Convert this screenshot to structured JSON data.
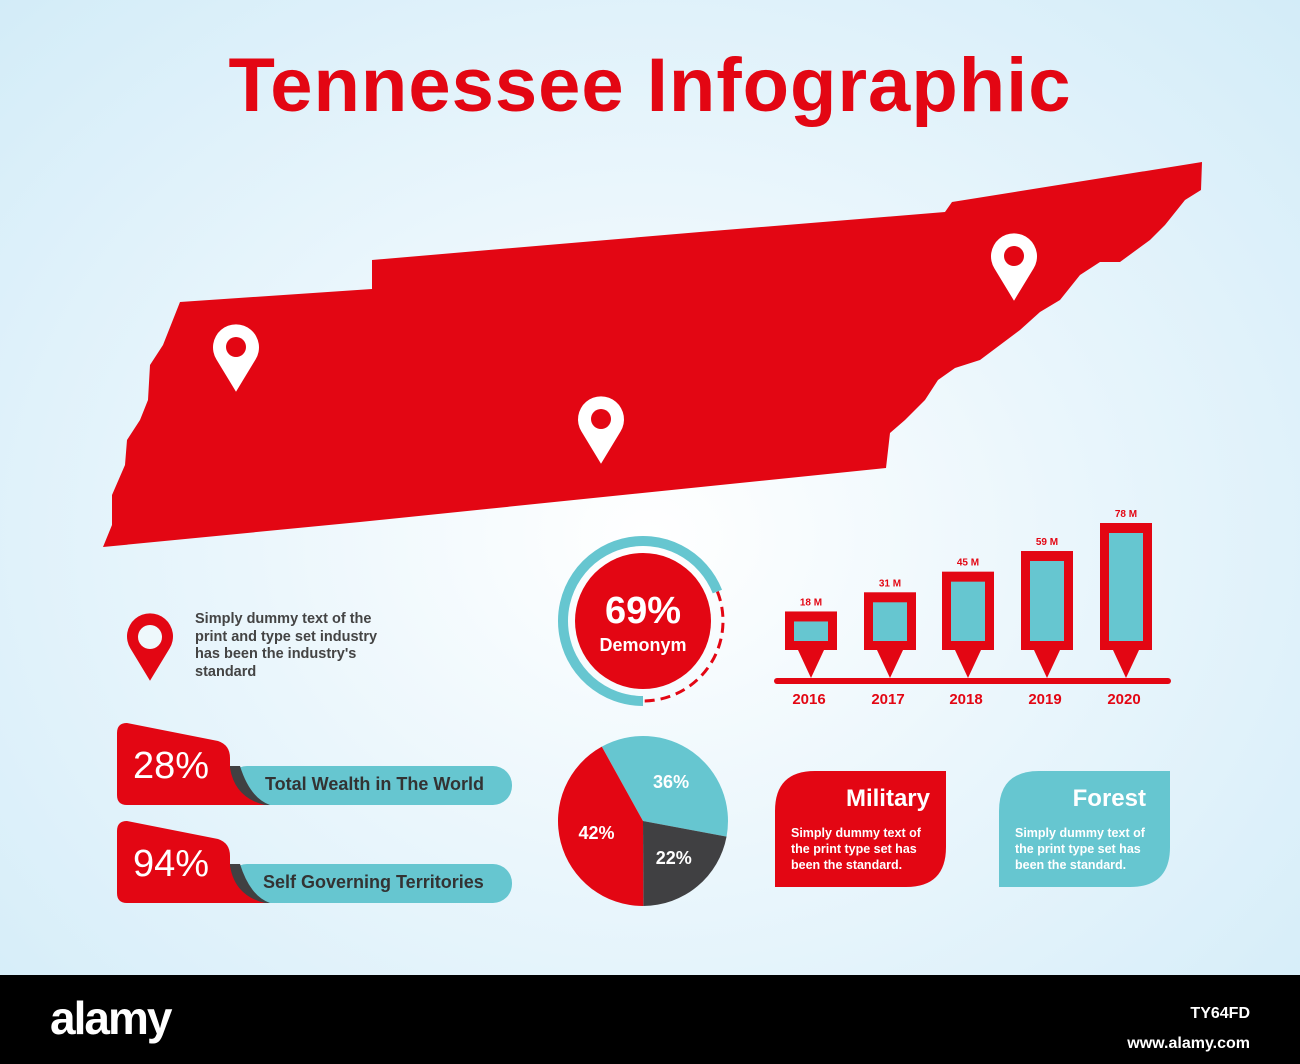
{
  "title": "Tennessee Infographic",
  "colors": {
    "red": "#e30613",
    "teal": "#66c6d0",
    "dark": "#404042",
    "bg": "#e6f4fb"
  },
  "map": {
    "name": "Tennessee",
    "pins": 3
  },
  "note": {
    "icon": "map-pin-icon",
    "text": "Simply dummy text of the print and type set industry has been the industry's standard"
  },
  "ring": {
    "value": 69,
    "percent_label": "69%",
    "label": "Demonym"
  },
  "stats": [
    {
      "percent": "28%",
      "label": "Total Wealth in The World"
    },
    {
      "percent": "94%",
      "label": "Self Governing Territories"
    }
  ],
  "cards": [
    {
      "title": "Military",
      "text": "Simply dummy text of the print type set has been the standard.",
      "color": "#e30613"
    },
    {
      "title": "Forest",
      "text": "Simply dummy text of the print type set has been the standard.",
      "color": "#66c6d0"
    }
  ],
  "chart_data": [
    {
      "type": "bar",
      "categories": [
        "2016",
        "2017",
        "2018",
        "2019",
        "2020"
      ],
      "values": [
        18,
        31,
        45,
        59,
        78
      ],
      "data_labels": [
        "18 M",
        "31 M",
        "45 M",
        "59 M",
        "78 M"
      ]
    },
    {
      "type": "pie",
      "values": [
        36,
        22,
        42
      ],
      "labels": [
        "36%",
        "22%",
        "42%"
      ],
      "colors": [
        "#66c6d0",
        "#404042",
        "#e30613"
      ]
    }
  ],
  "footer": {
    "logo": "alamy",
    "image_id": "TY64FD",
    "url": "www.alamy.com"
  }
}
